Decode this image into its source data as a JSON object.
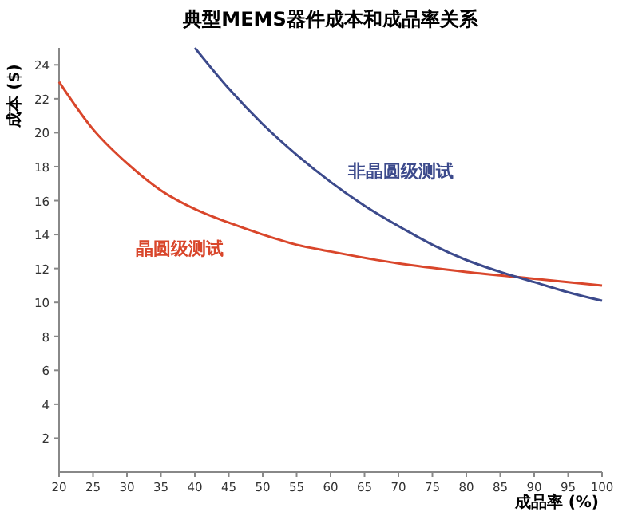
{
  "chart_data": {
    "type": "line",
    "title": "典型MEMS器件成本和成品率关系",
    "xlabel": "成品率 (%)",
    "ylabel": "成本 ($)",
    "xlim": [
      20,
      100
    ],
    "xticks": [
      20,
      25,
      30,
      35,
      40,
      45,
      50,
      55,
      60,
      65,
      70,
      75,
      80,
      85,
      90,
      95,
      100
    ],
    "ylim": [
      0,
      25
    ],
    "yticks": [
      2,
      4,
      6,
      8,
      10,
      12,
      14,
      16,
      18,
      20,
      22,
      24
    ],
    "marker": "none",
    "line_style": "solid",
    "series": [
      {
        "name": "晶圆级测试",
        "color": "#d9462b",
        "x": [
          20,
          25,
          30,
          35,
          40,
          45,
          50,
          55,
          60,
          70,
          80,
          90,
          100
        ],
        "values": [
          23,
          20.2,
          18.2,
          16.6,
          15.5,
          14.7,
          14,
          13.4,
          13,
          12.3,
          11.8,
          11.4,
          11
        ]
      },
      {
        "name": "非晶圆级测试",
        "color": "#3c4a8c",
        "x": [
          40,
          45,
          50,
          55,
          60,
          65,
          70,
          75,
          80,
          85,
          90,
          95,
          100
        ],
        "values": [
          25,
          22.6,
          20.5,
          18.7,
          17.1,
          15.7,
          14.5,
          13.4,
          12.5,
          11.8,
          11.2,
          10.6,
          10.1
        ]
      }
    ]
  }
}
